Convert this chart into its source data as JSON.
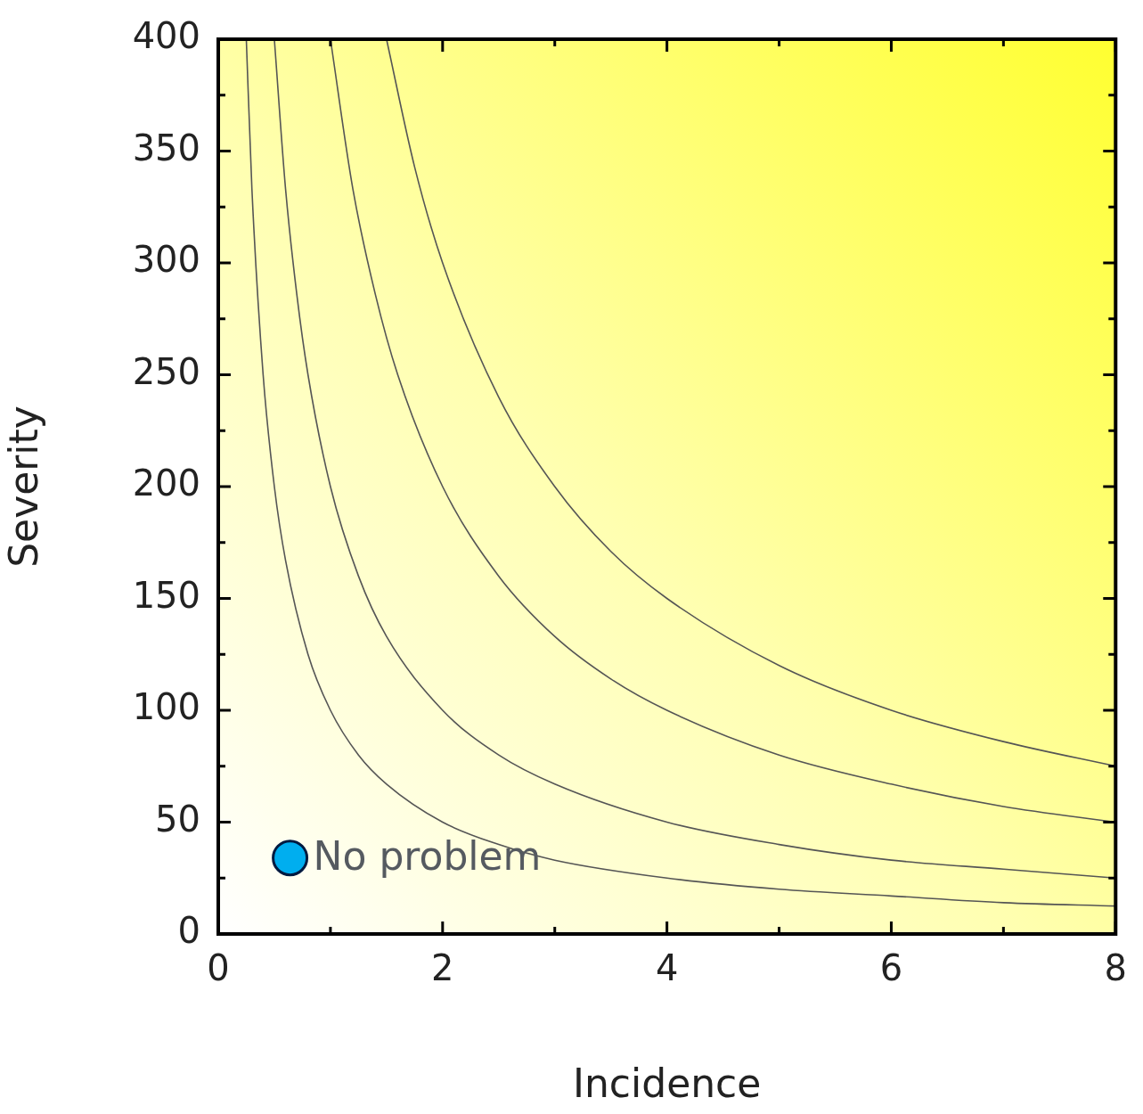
{
  "chart_data": {
    "type": "line",
    "xlabel": "Incidence",
    "ylabel": "Severity",
    "xlim": [
      0,
      8
    ],
    "ylim": [
      0,
      400
    ],
    "xticks": [
      0,
      {
        "value": 1,
        "label": null
      },
      2,
      {
        "value": 3,
        "label": null
      },
      4,
      {
        "value": 5,
        "label": null
      },
      6,
      {
        "value": 7,
        "label": null
      },
      8
    ],
    "yticks": [
      0,
      {
        "value": 25,
        "label": null
      },
      50,
      {
        "value": 75,
        "label": null
      },
      100,
      {
        "value": 125,
        "label": null
      },
      150,
      {
        "value": 175,
        "label": null
      },
      200,
      {
        "value": 225,
        "label": null
      },
      250,
      {
        "value": 275,
        "label": null
      },
      300,
      {
        "value": 325,
        "label": null
      },
      350,
      {
        "value": 375,
        "label": null
      },
      400
    ],
    "grid": false,
    "legend": false,
    "series": [
      {
        "marker": "none",
        "color": "#555555",
        "x": [
          0.25,
          0.3,
          0.4,
          0.5,
          0.6,
          0.8,
          1,
          1.25,
          1.5,
          2,
          2.5,
          3,
          4,
          5,
          6,
          7,
          8
        ],
        "values": [
          400,
          333,
          250,
          200,
          167,
          125,
          100,
          80,
          67,
          50,
          40,
          33,
          25,
          20,
          17,
          14,
          12.5
        ]
      },
      {
        "marker": "none",
        "color": "#555555",
        "x": [
          0.5,
          0.6,
          0.7,
          0.8,
          1,
          1.25,
          1.5,
          2,
          2.5,
          3,
          4,
          5,
          6,
          7,
          8
        ],
        "values": [
          400,
          333,
          286,
          250,
          200,
          160,
          133,
          100,
          80,
          67,
          50,
          40,
          33,
          29,
          25
        ]
      },
      {
        "marker": "none",
        "color": "#555555",
        "x": [
          1,
          1.2,
          1.4,
          1.6,
          2,
          2.5,
          3,
          3.5,
          4,
          5,
          6,
          7,
          8
        ],
        "values": [
          400,
          333,
          286,
          250,
          200,
          160,
          133,
          114,
          100,
          80,
          67,
          57,
          50
        ]
      },
      {
        "marker": "none",
        "color": "#555555",
        "x": [
          1.5,
          1.75,
          2,
          2.5,
          3,
          3.5,
          4,
          5,
          6,
          7,
          8
        ],
        "values": [
          400,
          343,
          300,
          240,
          200,
          171,
          150,
          120,
          100,
          86,
          75
        ]
      },
      {
        "type": "scatter",
        "marker": "circle",
        "name": "No problem",
        "color": "#00aeef",
        "x": [
          0.64
        ],
        "values": [
          34
        ]
      }
    ]
  }
}
